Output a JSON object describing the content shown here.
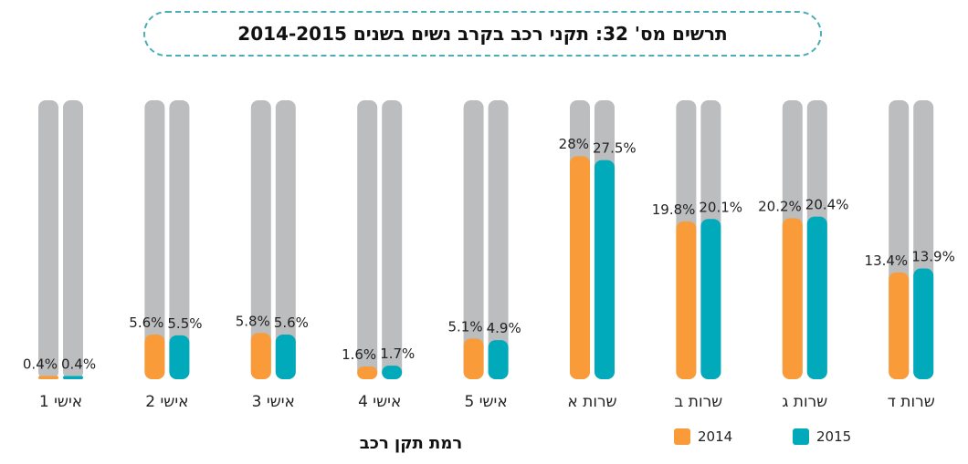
{
  "title": "תרשים מס' 32: תקני רכב בקרב נשים בשנים 2014-2015",
  "colors": {
    "track": "#bcbdbf",
    "2014": "#f89b38",
    "2015": "#00aabb"
  },
  "chart_data": {
    "type": "bar",
    "xlabel": "רמת תקן רכב",
    "ylabel": "",
    "ylim": [
      0,
      35
    ],
    "grid": false,
    "legend_position": "bottom-right",
    "categories": [
      "אישי 1",
      "אישי 2",
      "אישי 3",
      "אישי 4",
      "אישי 5",
      "שרות א",
      "שרות ב",
      "שרות ג",
      "שרות ד"
    ],
    "series": [
      {
        "name": "2014",
        "values": [
          0.4,
          5.6,
          5.8,
          1.6,
          5.1,
          28,
          19.8,
          20.2,
          13.4
        ],
        "labels": [
          "0.4%",
          "5.6%",
          "5.8%",
          "1.6%",
          "5.1%",
          "28%",
          "19.8%",
          "20.2%",
          "13.4%"
        ]
      },
      {
        "name": "2015",
        "values": [
          0.4,
          5.5,
          5.6,
          1.7,
          4.9,
          27.5,
          20.1,
          20.4,
          13.9
        ],
        "labels": [
          "0.4%",
          "5.5%",
          "5.6%",
          "1.7%",
          "4.9%",
          "27.5%",
          "20.1%",
          "20.4%",
          "13.9%"
        ]
      }
    ]
  }
}
